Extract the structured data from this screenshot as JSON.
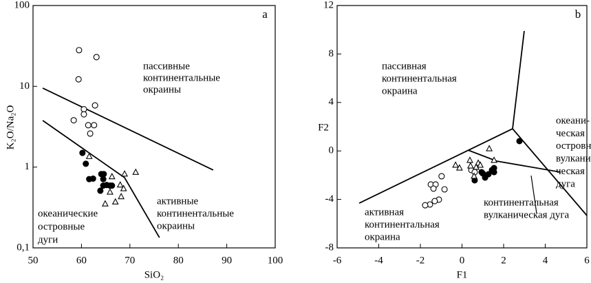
{
  "chart_data": [
    {
      "type": "scatter",
      "label": "a",
      "xlabel": "SiO₂",
      "ylabel": "K₂O/Na₂O",
      "xlim": [
        50,
        100
      ],
      "ylim": [
        0.1,
        100
      ],
      "ylog": true,
      "xticks": [
        50,
        60,
        70,
        80,
        90,
        100
      ],
      "yticks": [
        {
          "value": 0.1,
          "label": "0,1"
        },
        1,
        10,
        100
      ],
      "series": [
        {
          "marker": "open-circle",
          "color": "#000000",
          "x": [
            59.5,
            63.1,
            59.4,
            60.5,
            60.5,
            62.8,
            58.4,
            61.4,
            62.6,
            61.8
          ],
          "values": [
            28,
            23,
            12.2,
            5.2,
            4.5,
            5.8,
            3.8,
            3.3,
            3.3,
            2.6
          ]
        },
        {
          "marker": "filled-circle",
          "color": "#000000",
          "x": [
            60.2,
            60.9,
            61.6,
            62.4,
            64.1,
            64.6,
            64.5,
            63.9,
            64.5,
            65.2,
            65.9,
            66.3
          ],
          "values": [
            1.5,
            1.1,
            0.71,
            0.72,
            0.82,
            0.82,
            0.71,
            0.51,
            0.59,
            0.6,
            0.59,
            0.59
          ]
        },
        {
          "marker": "open-triangle",
          "color": "#000000",
          "x": [
            61.6,
            68.9,
            71.2,
            65.9,
            64.9,
            67.0,
            68.2,
            68.0,
            68.7,
            66.3
          ],
          "values": [
            1.35,
            0.82,
            0.86,
            0.49,
            0.35,
            0.37,
            0.43,
            0.6,
            0.54,
            0.76
          ]
        }
      ],
      "boundaries": [
        {
          "x": [
            52,
            87.2
          ],
          "y": [
            9.5,
            0.92
          ]
        },
        {
          "x": [
            52,
            68.9,
            76.1
          ],
          "y": [
            3.77,
            0.74,
            0.134
          ]
        }
      ],
      "annotations": [
        {
          "lines": [
            "пассивные",
            "континентальные",
            "окраины"
          ]
        },
        {
          "lines": [
            "активные",
            "континентальные",
            "окраины"
          ]
        },
        {
          "lines": [
            "океанические",
            "островные",
            "дуги"
          ]
        }
      ]
    },
    {
      "type": "scatter",
      "label": "b",
      "xlabel": "F1",
      "ylabel": "F2",
      "xlim": [
        -6,
        6
      ],
      "ylim": [
        -8,
        12
      ],
      "ylog": false,
      "xticks": [
        -6,
        -4,
        -2,
        0,
        2,
        4,
        6
      ],
      "yticks": [
        -8,
        -4,
        0,
        4,
        8,
        12
      ],
      "series": [
        {
          "marker": "open-circle",
          "color": "#000000",
          "x": [
            -1.5,
            -1.27,
            -1.37,
            -0.98,
            -0.84,
            -1.11,
            -1.31,
            -1.54,
            -1.77,
            0.45,
            0.61
          ],
          "values": [
            -2.77,
            -2.77,
            -3.11,
            -2.09,
            -3.17,
            -4.02,
            -4.14,
            -4.42,
            -4.48,
            -1.58,
            -1.75
          ]
        },
        {
          "marker": "filled-circle",
          "color": "#000000",
          "x": [
            2.76,
            0.61,
            0.94,
            1.11,
            1.27,
            1.44,
            1.54,
            1.0,
            1.54
          ],
          "values": [
            0.81,
            -2.43,
            -1.75,
            -2.2,
            -1.92,
            -1.58,
            -1.75,
            -1.86,
            -1.41
          ]
        },
        {
          "marker": "open-triangle",
          "color": "#000000",
          "x": [
            -0.31,
            -0.12,
            0.41,
            0.38,
            0.78,
            1.31,
            1.54,
            0.68,
            0.88,
            0.58
          ],
          "values": [
            -1.18,
            -1.41,
            -1.24,
            -0.78,
            -1.01,
            0.18,
            -0.78,
            -1.35,
            -1.18,
            -2.09
          ]
        }
      ],
      "boundaries": [
        {
          "x": [
            -4.94,
            2.43,
            2.99
          ],
          "y": [
            -4.31,
            1.83,
            9.9
          ]
        },
        {
          "x": [
            2.43,
            6.0
          ],
          "y": [
            1.83,
            -5.33
          ]
        },
        {
          "x": [
            0.3,
            1.67,
            4.74
          ],
          "y": [
            0.06,
            -0.84,
            -1.75
          ]
        }
      ],
      "annotations": [
        {
          "lines": [
            "пассивная",
            "континентальная",
            "окраина"
          ]
        },
        {
          "lines": [
            "океани-",
            "ческая",
            "островная/",
            "вулкани-",
            "ческая",
            "дуга"
          ]
        },
        {
          "lines": [
            "континентальная",
            "вулканическая дуга"
          ]
        },
        {
          "lines": [
            "активная",
            "континентальная",
            "окраина"
          ]
        }
      ]
    }
  ]
}
